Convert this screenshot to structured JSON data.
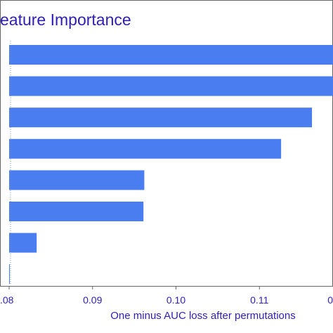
{
  "chart_data": {
    "type": "bar",
    "orientation": "horizontal",
    "title": "eature Importance",
    "xlabel": "One minus AUC loss after permutations",
    "ylabel": "",
    "xlim": [
      0.08,
      0.12
    ],
    "xticks": [
      {
        "value": 0.08,
        "label": ".08"
      },
      {
        "value": 0.09,
        "label": "0.09"
      },
      {
        "value": 0.1,
        "label": "0.10"
      },
      {
        "value": 0.11,
        "label": "0.11"
      },
      {
        "value": 0.12,
        "label": "0"
      }
    ],
    "values": [
      0.1205,
      0.1205,
      0.1163,
      0.1126,
      0.0962,
      0.0961,
      0.0833,
      0.0798
    ],
    "grid": false,
    "reference_line": 0.08
  },
  "colors": {
    "bar": "#4a7df0",
    "text": "#2e1fb3",
    "frame": "#666666",
    "reference_line": "#7a8fb0"
  }
}
